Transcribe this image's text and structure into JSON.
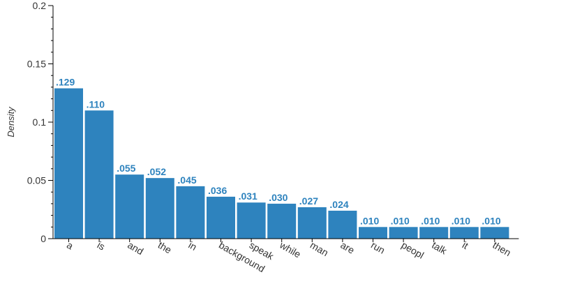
{
  "chart_data": {
    "type": "bar",
    "title": "",
    "xlabel": "",
    "ylabel": "Density",
    "ylim": [
      0,
      0.2
    ],
    "yticks": [
      0,
      0.05,
      0.1,
      0.15,
      0.2
    ],
    "ytick_labels": [
      "0",
      "0.05",
      "0.1",
      "0.15",
      "0.2"
    ],
    "categories": [
      "a",
      "is",
      "and",
      "the",
      "in",
      "background",
      "speak",
      "while",
      "man",
      "are",
      "run",
      "peopl",
      "talk",
      "it",
      "then"
    ],
    "values": [
      0.129,
      0.11,
      0.055,
      0.052,
      0.045,
      0.036,
      0.031,
      0.03,
      0.027,
      0.024,
      0.01,
      0.01,
      0.01,
      0.01,
      0.01
    ],
    "data_labels": [
      ".129",
      ".110",
      ".055",
      ".052",
      ".045",
      ".036",
      ".031",
      ".030",
      ".027",
      ".024",
      ".010",
      ".010",
      ".010",
      ".010",
      ".010"
    ],
    "grid": false,
    "legend": "none",
    "colors": {
      "bar": "#2e83be",
      "label": "#2e83be",
      "axis": "#000000"
    }
  }
}
